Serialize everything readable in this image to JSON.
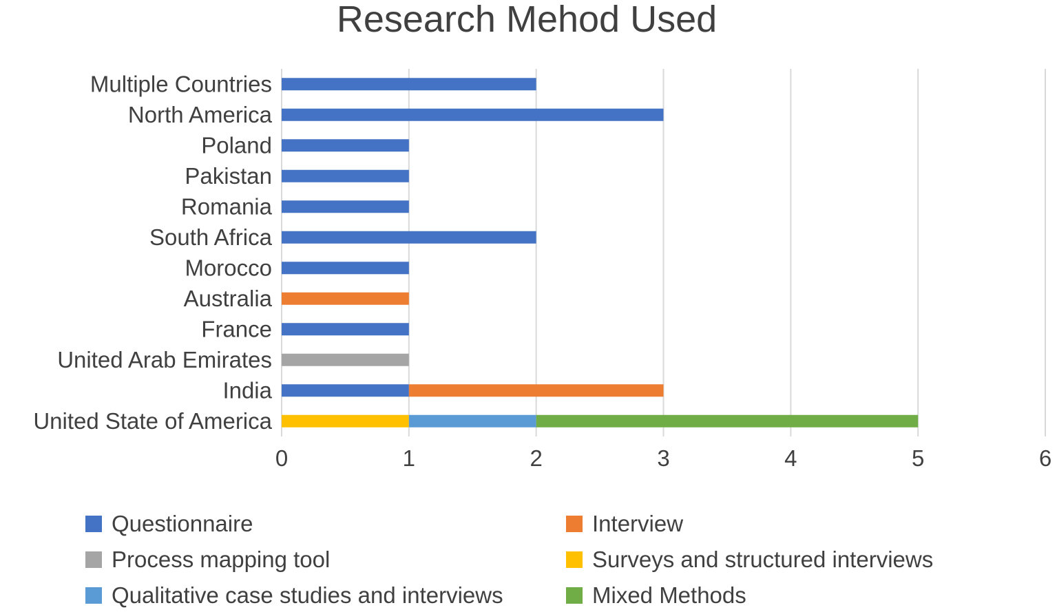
{
  "chart_data": {
    "type": "bar",
    "orientation": "horizontal",
    "stacked": true,
    "title": "Research Mehod Used",
    "xlabel": "",
    "ylabel": "",
    "xlim": [
      0,
      6
    ],
    "x_ticks": [
      "0",
      "1",
      "2",
      "3",
      "4",
      "5",
      "6"
    ],
    "grid": true,
    "legend_position": "bottom",
    "categories": [
      "United State of America",
      "India",
      "United Arab Emirates",
      "France",
      "Australia",
      "Morocco",
      "South Africa",
      "Romania",
      "Pakistan",
      "Poland",
      "North America",
      "Multiple Countries"
    ],
    "series": [
      {
        "name": "Questionnaire",
        "color": "#4472c4",
        "values": [
          0,
          1,
          0,
          1,
          0,
          1,
          2,
          1,
          1,
          1,
          3,
          2
        ]
      },
      {
        "name": "Interview",
        "color": "#ed7d31",
        "values": [
          0,
          2,
          0,
          0,
          1,
          0,
          0,
          0,
          0,
          0,
          0,
          0
        ]
      },
      {
        "name": "Process mapping tool",
        "color": "#a5a5a5",
        "values": [
          0,
          0,
          1,
          0,
          0,
          0,
          0,
          0,
          0,
          0,
          0,
          0
        ]
      },
      {
        "name": "Surveys and structured interviews",
        "color": "#ffc000",
        "values": [
          1,
          0,
          0,
          0,
          0,
          0,
          0,
          0,
          0,
          0,
          0,
          0
        ]
      },
      {
        "name": "Qualitative case studies and interviews",
        "color": "#5b9bd5",
        "values": [
          1,
          0,
          0,
          0,
          0,
          0,
          0,
          0,
          0,
          0,
          0,
          0
        ]
      },
      {
        "name": "Mixed Methods",
        "color": "#70ad47",
        "values": [
          3,
          0,
          0,
          0,
          0,
          0,
          0,
          0,
          0,
          0,
          0,
          0
        ]
      }
    ]
  }
}
